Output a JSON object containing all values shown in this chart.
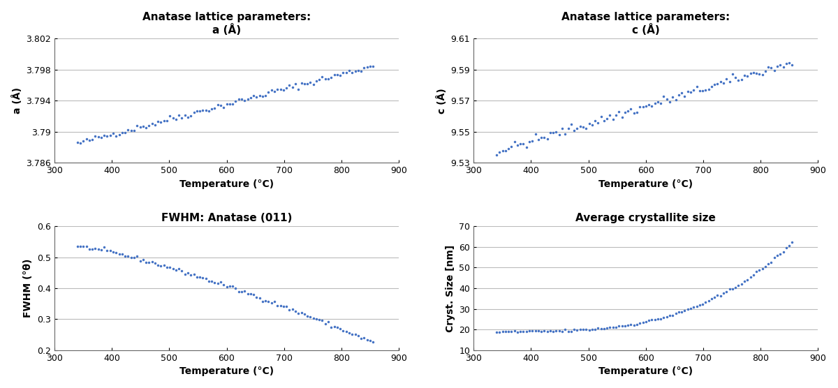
{
  "title_a": "Anatase lattice parameters:\na (Å)",
  "title_c": "Anatase lattice parameters:\nc (Å)",
  "title_fwhm": "FWHM: Anatase (011)",
  "title_cryst": "Average crystallite size",
  "xlabel": "Temperature (°C)",
  "ylabel_a": "a (Å)",
  "ylabel_c": "c (Å)",
  "ylabel_fwhm": "FWHM (°θ)",
  "ylabel_cryst": "Cryst. Size [nm]",
  "xlim": [
    300,
    900
  ],
  "xticks": [
    300,
    400,
    500,
    600,
    700,
    800,
    900
  ],
  "ylim_a": [
    3.786,
    3.802
  ],
  "yticks_a": [
    3.786,
    3.79,
    3.794,
    3.798,
    3.802
  ],
  "ytick_labels_a": [
    "3.786",
    "3.79",
    "3.794",
    "3.798",
    "3.802"
  ],
  "ylim_c": [
    9.53,
    9.61
  ],
  "yticks_c": [
    9.53,
    9.55,
    9.57,
    9.59,
    9.61
  ],
  "ytick_labels_c": [
    "9.53",
    "9.55",
    "9.57",
    "9.59",
    "9.61"
  ],
  "ylim_fwhm": [
    0.2,
    0.6
  ],
  "yticks_fwhm": [
    0.2,
    0.3,
    0.4,
    0.5,
    0.6
  ],
  "ylim_cryst": [
    10,
    70
  ],
  "yticks_cryst": [
    10,
    20,
    30,
    40,
    50,
    60,
    70
  ],
  "marker_color": "#4472C4",
  "marker": "o",
  "marker_size": 2.5,
  "background_color": "#ffffff",
  "grid_color": "#bbbbbb",
  "title_fontsize": 11,
  "label_fontsize": 10,
  "tick_fontsize": 9,
  "figsize": [
    12.0,
    5.56
  ],
  "dpi": 100
}
